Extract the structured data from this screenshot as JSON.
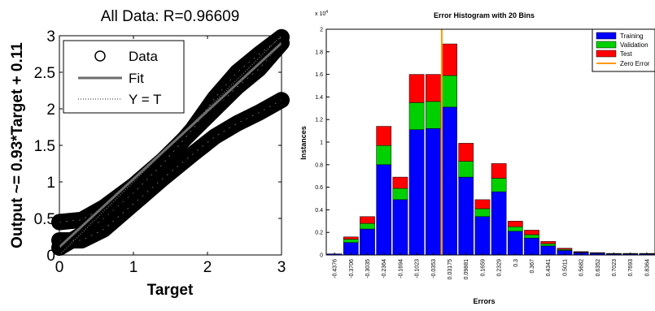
{
  "chart_data": [
    {
      "type": "scatter",
      "title": "All Data: R=0.96609",
      "xlabel": "Target",
      "ylabel": "Output ~= 0.93*Target + 0.11",
      "xlim": [
        0,
        3
      ],
      "ylim": [
        0,
        3
      ],
      "xticks": [
        "0",
        "1",
        "2",
        "3"
      ],
      "yticks": [
        "0",
        "0.5",
        "1",
        "1.5",
        "2",
        "2.5",
        "3"
      ],
      "fit": {
        "slope": 0.93,
        "intercept": 0.11
      },
      "grid": false,
      "legend": {
        "position": "top-left",
        "entries": [
          {
            "label": "Data",
            "marker": "circle"
          },
          {
            "label": "Fit",
            "line": "solid",
            "color": "#6d6d6d"
          },
          {
            "label": "Y = T",
            "line": "dotted",
            "color": "#6d6d6d"
          }
        ]
      },
      "data_color": "#000000",
      "curves": [
        {
          "x": [
            0,
            0.3,
            0.6,
            1.0,
            1.4,
            1.8,
            2.1,
            2.4,
            2.7,
            3.0
          ],
          "y": [
            0.45,
            0.48,
            0.65,
            0.95,
            1.3,
            1.7,
            2.0,
            2.3,
            2.55,
            2.9
          ]
        },
        {
          "x": [
            0,
            0.3,
            0.6,
            1.0,
            1.4,
            1.8,
            2.1,
            2.4,
            2.7,
            3.0
          ],
          "y": [
            0.1,
            0.28,
            0.5,
            0.85,
            1.25,
            1.72,
            2.15,
            2.5,
            2.75,
            2.98
          ]
        },
        {
          "x": [
            0,
            0.3,
            0.6,
            1.0,
            1.4,
            1.8,
            2.1,
            2.4,
            2.7,
            3.0
          ],
          "y": [
            0.2,
            0.2,
            0.35,
            0.7,
            1.05,
            1.38,
            1.62,
            1.8,
            1.95,
            2.12
          ]
        }
      ]
    },
    {
      "type": "bar",
      "stacked": true,
      "title": "Error Histogram with 20 Bins",
      "xlabel": "Errors",
      "ylabel": "Instances",
      "y_exponent_label": "x 10",
      "y_exponent_power": "4",
      "ylim": [
        0,
        2
      ],
      "yticks": [
        "0",
        "0.2",
        "0.4",
        "0.6",
        "0.8",
        "1",
        "1.2",
        "1.4",
        "1.6",
        "1.8",
        "2"
      ],
      "categories": [
        "-0.4376",
        "-0.3706",
        "-0.3035",
        "-0.2364",
        "-0.1694",
        "-0.1023",
        "-0.0353",
        "0.03175",
        "0.09881",
        "0.1659",
        "0.2329",
        "0.3",
        "0.367",
        "0.4341",
        "0.5011",
        "0.5682",
        "0.6352",
        "0.7023",
        "0.7693",
        "0.8364"
      ],
      "series": [
        {
          "name": "Training",
          "color": "#0000ff",
          "values": [
            0.01,
            0.11,
            0.23,
            0.8,
            0.49,
            1.11,
            1.12,
            1.31,
            0.69,
            0.34,
            0.56,
            0.21,
            0.15,
            0.08,
            0.04,
            0.02,
            0.015,
            0.01,
            0.01,
            0.01
          ]
        },
        {
          "name": "Validation",
          "color": "#00d000",
          "values": [
            0.0,
            0.03,
            0.05,
            0.17,
            0.1,
            0.24,
            0.24,
            0.28,
            0.14,
            0.07,
            0.12,
            0.04,
            0.03,
            0.02,
            0.01,
            0.005,
            0.003,
            0.002,
            0.002,
            0.002
          ]
        },
        {
          "name": "Test",
          "color": "#ff0000",
          "values": [
            0.0,
            0.02,
            0.06,
            0.17,
            0.1,
            0.25,
            0.24,
            0.28,
            0.16,
            0.08,
            0.13,
            0.05,
            0.04,
            0.02,
            0.01,
            0.005,
            0.003,
            0.002,
            0.002,
            0.002
          ]
        }
      ],
      "zero_error": {
        "name": "Zero Error",
        "color": "#ff9900",
        "x": 0
      },
      "legend": {
        "position": "top-right"
      }
    }
  ]
}
